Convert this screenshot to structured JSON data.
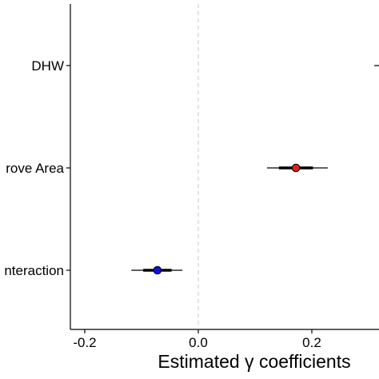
{
  "chart_data": {
    "type": "scatter",
    "subtype": "coefficient-plot",
    "title": "",
    "xlabel": "Estimated γ coefficients",
    "ylabel": "",
    "xlim": [
      -0.25,
      0.32
    ],
    "x_ticks": [
      -0.2,
      0.0,
      0.2
    ],
    "x_tick_labels": [
      "-0.2",
      "0.0",
      "0.2"
    ],
    "reference_line": {
      "x": 0.0,
      "style": "dashed",
      "color": "#c8c8c8"
    },
    "grid": false,
    "legend": "none",
    "categories": [
      "DHW",
      "rove Area",
      "nteraction"
    ],
    "points": [
      {
        "label": "DHW",
        "estimate": 0.34,
        "inner": [
          0.33,
          0.35
        ],
        "outer": [
          0.31,
          0.37
        ],
        "color": "#000000"
      },
      {
        "label": "rove Area",
        "estimate": 0.172,
        "inner": [
          0.142,
          0.202
        ],
        "outer": [
          0.121,
          0.228
        ],
        "color": "#e41a1c"
      },
      {
        "label": "nteraction",
        "estimate": -0.072,
        "inner": [
          -0.097,
          -0.047
        ],
        "outer": [
          -0.118,
          -0.028
        ],
        "color": "#1010e0"
      }
    ]
  }
}
